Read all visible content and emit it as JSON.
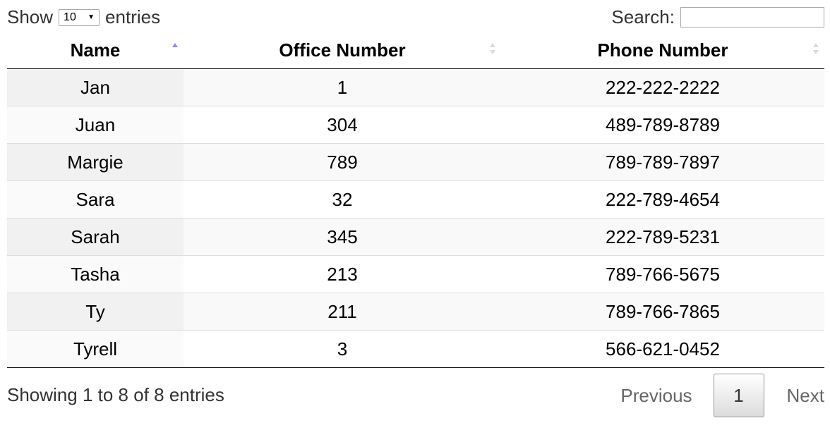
{
  "length_menu": {
    "prefix": "Show",
    "selected": "10",
    "suffix": "entries"
  },
  "search": {
    "label": "Search:",
    "value": ""
  },
  "table": {
    "columns": [
      {
        "label": "Name",
        "sort": "ascending"
      },
      {
        "label": "Office Number",
        "sort": "none"
      },
      {
        "label": "Phone Number",
        "sort": "none"
      }
    ],
    "rows": [
      [
        "Jan",
        "1",
        "222-222-2222"
      ],
      [
        "Juan",
        "304",
        "489-789-8789"
      ],
      [
        "Margie",
        "789",
        "789-789-7897"
      ],
      [
        "Sara",
        "32",
        "222-789-4654"
      ],
      [
        "Sarah",
        "345",
        "222-789-5231"
      ],
      [
        "Tasha",
        "213",
        "789-766-5675"
      ],
      [
        "Ty",
        "211",
        "789-766-7865"
      ],
      [
        "Tyrell",
        "3",
        "566-621-0452"
      ]
    ]
  },
  "info": "Showing 1 to 8 of 8 entries",
  "pagination": {
    "previous": "Previous",
    "current": "1",
    "next": "Next"
  },
  "colors": {
    "sort_active": "#8a8fe6",
    "sort_inactive": "#dadada"
  }
}
